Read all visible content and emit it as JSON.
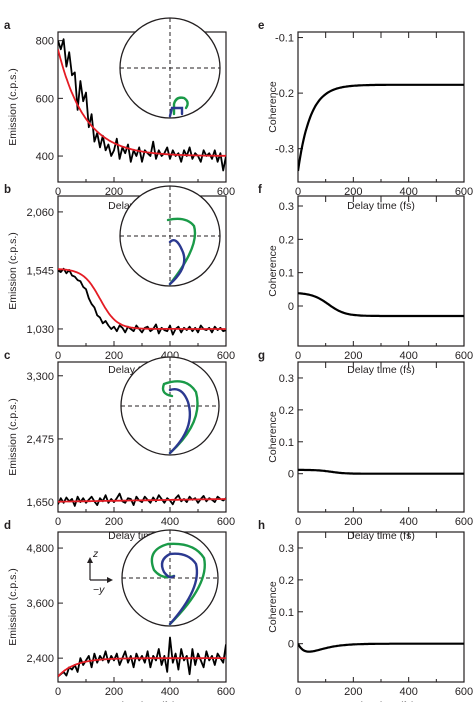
{
  "colors": {
    "data": "#000000",
    "fit": "#e41c24",
    "bloch_green": "#1a9a48",
    "bloch_blue": "#2b3990",
    "axis": "#231f20"
  },
  "chart_data": [
    {
      "panel": "a",
      "type": "line",
      "xlabel": "Delay time (fs)",
      "ylabel": "Emission (c.p.s.)",
      "xlim": [
        0,
        600
      ],
      "ylim": [
        310,
        830
      ],
      "xticks": [
        0,
        200,
        400,
        600
      ],
      "xtick_labels": [
        "0",
        "200",
        "400",
        "600"
      ],
      "yticks": [
        400,
        600,
        800
      ],
      "ytick_labels": [
        "400",
        "600",
        "800"
      ],
      "fit": {
        "type": "exp",
        "x0": 0,
        "x1": 600,
        "base": 400,
        "amp": 370,
        "tau": 95
      },
      "x": [
        0,
        10,
        20,
        30,
        40,
        50,
        60,
        70,
        80,
        90,
        100,
        110,
        120,
        130,
        140,
        150,
        160,
        170,
        180,
        190,
        200,
        210,
        220,
        230,
        240,
        250,
        260,
        270,
        280,
        290,
        300,
        310,
        320,
        330,
        340,
        350,
        360,
        370,
        380,
        390,
        400,
        410,
        420,
        430,
        440,
        450,
        460,
        470,
        480,
        490,
        500,
        510,
        520,
        530,
        540,
        550,
        560,
        570,
        580,
        590,
        600
      ],
      "y": [
        800,
        770,
        805,
        710,
        760,
        680,
        690,
        560,
        660,
        590,
        620,
        500,
        545,
        450,
        480,
        430,
        470,
        420,
        440,
        400,
        420,
        460,
        390,
        430,
        410,
        440,
        380,
        420,
        400,
        430,
        380,
        420,
        410,
        400,
        450,
        390,
        420,
        400,
        410,
        430,
        390,
        420,
        400,
        410,
        380,
        420,
        400,
        430,
        390,
        410,
        400,
        380,
        420,
        400,
        410,
        390,
        420,
        380,
        410,
        350,
        400
      ]
    },
    {
      "panel": "b",
      "type": "line",
      "xlabel": "Delay time (fs)",
      "ylabel": "Emission (c.p.s.)",
      "xlim": [
        0,
        600
      ],
      "ylim": [
        880,
        2200
      ],
      "xticks": [
        0,
        200,
        400,
        600
      ],
      "xtick_labels": [
        "0",
        "200",
        "400",
        "600"
      ],
      "yticks": [
        1030,
        1545,
        2060
      ],
      "ytick_labels": [
        "1,030",
        "1,545",
        "2,060"
      ],
      "fit": {
        "type": "sigmoid",
        "x0": 0,
        "x1": 600,
        "base": 1030,
        "amp": 530,
        "t0": 150,
        "w": 30
      },
      "x": [
        0,
        10,
        20,
        30,
        40,
        50,
        60,
        70,
        80,
        90,
        100,
        110,
        120,
        130,
        140,
        150,
        160,
        170,
        180,
        190,
        200,
        210,
        220,
        230,
        240,
        250,
        260,
        270,
        280,
        290,
        300,
        310,
        320,
        330,
        340,
        350,
        360,
        370,
        380,
        390,
        400,
        410,
        420,
        430,
        440,
        450,
        460,
        470,
        480,
        490,
        500,
        510,
        520,
        530,
        540,
        550,
        560,
        570,
        580,
        590,
        600
      ],
      "y": [
        1545,
        1530,
        1560,
        1520,
        1550,
        1500,
        1490,
        1460,
        1450,
        1400,
        1380,
        1300,
        1250,
        1220,
        1150,
        1130,
        1080,
        1100,
        1060,
        1030,
        1050,
        1010,
        1060,
        1040,
        1000,
        1050,
        1030,
        1010,
        1060,
        1030,
        1000,
        1040,
        1050,
        1010,
        1030,
        1070,
        990,
        1040,
        1020,
        1010,
        1060,
        980,
        1030,
        1050,
        1000,
        1040,
        1020,
        1050,
        1010,
        1040,
        1000,
        1060,
        1030,
        1020,
        1040,
        1000,
        1050,
        1020,
        1040,
        1010,
        1020
      ]
    },
    {
      "panel": "c",
      "type": "line",
      "xlabel": "Delay time (fs)",
      "ylabel": "Emission (c.p.s.)",
      "xlim": [
        0,
        600
      ],
      "ylim": [
        1520,
        3480
      ],
      "xticks": [
        0,
        200,
        400,
        600
      ],
      "xtick_labels": [
        "0",
        "200",
        "400",
        "600"
      ],
      "yticks": [
        1650,
        2475,
        3300
      ],
      "ytick_labels": [
        "1,650",
        "2,475",
        "3,300"
      ],
      "fit": {
        "type": "linear",
        "x0": 0,
        "x1": 600,
        "y0": 1655,
        "y1": 1690
      },
      "x": [
        0,
        10,
        20,
        30,
        40,
        50,
        60,
        70,
        80,
        90,
        100,
        110,
        120,
        130,
        140,
        150,
        160,
        170,
        180,
        190,
        200,
        210,
        220,
        230,
        240,
        250,
        260,
        270,
        280,
        290,
        300,
        310,
        320,
        330,
        340,
        350,
        360,
        370,
        380,
        390,
        400,
        410,
        420,
        430,
        440,
        450,
        460,
        470,
        480,
        490,
        500,
        510,
        520,
        530,
        540,
        550,
        560,
        570,
        580,
        590,
        600
      ],
      "y": [
        1620,
        1700,
        1640,
        1710,
        1660,
        1690,
        1600,
        1720,
        1650,
        1700,
        1640,
        1680,
        1720,
        1660,
        1610,
        1700,
        1660,
        1740,
        1640,
        1690,
        1650,
        1700,
        1760,
        1660,
        1640,
        1700,
        1690,
        1610,
        1720,
        1670,
        1650,
        1720,
        1680,
        1640,
        1710,
        1660,
        1740,
        1690,
        1640,
        1700,
        1670,
        1620,
        1700,
        1740,
        1660,
        1690,
        1650,
        1720,
        1680,
        1700,
        1640,
        1690,
        1730,
        1660,
        1700,
        1680,
        1650,
        1720,
        1690,
        1670,
        1700
      ]
    },
    {
      "panel": "d",
      "type": "line",
      "xlabel": "Delay time (fs)",
      "ylabel": "Emission (c.p.s.)",
      "xlim": [
        0,
        600
      ],
      "ylim": [
        1880,
        5150
      ],
      "xticks": [
        0,
        200,
        400,
        600
      ],
      "xtick_labels": [
        "0",
        "200",
        "400",
        "600"
      ],
      "yticks": [
        2400,
        3600,
        4800
      ],
      "ytick_labels": [
        "2,400",
        "3,600",
        "4,800"
      ],
      "fit": {
        "type": "exp_rise",
        "x0": 0,
        "x1": 600,
        "base": 2400,
        "amp": -400,
        "tau": 60
      },
      "x": [
        0,
        10,
        20,
        30,
        40,
        50,
        60,
        70,
        80,
        90,
        100,
        110,
        120,
        130,
        140,
        150,
        160,
        170,
        180,
        190,
        200,
        210,
        220,
        230,
        240,
        250,
        260,
        270,
        280,
        290,
        300,
        310,
        320,
        330,
        340,
        350,
        360,
        370,
        380,
        390,
        400,
        410,
        420,
        430,
        440,
        450,
        460,
        470,
        480,
        490,
        500,
        510,
        520,
        530,
        540,
        550,
        560,
        570,
        580,
        590,
        600
      ],
      "y": [
        2000,
        2050,
        2100,
        2020,
        2200,
        2150,
        2250,
        2100,
        2400,
        2250,
        2350,
        2450,
        2200,
        2500,
        2300,
        2450,
        2350,
        2550,
        2300,
        2450,
        2350,
        2500,
        2250,
        2400,
        2550,
        2300,
        2450,
        2200,
        2500,
        2350,
        2450,
        2300,
        2550,
        2200,
        2450,
        2350,
        2600,
        2250,
        2450,
        2100,
        2850,
        2300,
        2500,
        2150,
        2600,
        2350,
        2450,
        2050,
        2600,
        2250,
        2500,
        2350,
        2200,
        2550,
        2350,
        2450,
        2250,
        2500,
        2400,
        2300,
        2700
      ]
    },
    {
      "panel": "e",
      "type": "line",
      "xlabel": "Delay time (fs)",
      "ylabel": "Coherence",
      "xlim": [
        0,
        600
      ],
      "ylim": [
        -0.36,
        -0.09
      ],
      "xticks": [
        0,
        200,
        400,
        600
      ],
      "xtick_labels": [
        "0",
        "200",
        "400",
        "600"
      ],
      "yticks": [
        -0.3,
        -0.2,
        -0.1
      ],
      "ytick_labels": [
        "-0.3",
        "-0.2",
        "-0.1"
      ],
      "curve": {
        "type": "exp",
        "x0": 0,
        "x1": 600,
        "base": -0.185,
        "amp": -0.155,
        "tau": 45
      }
    },
    {
      "panel": "f",
      "type": "line",
      "xlabel": "Delay time (fs)",
      "ylabel": "Coherence",
      "xlim": [
        0,
        600
      ],
      "ylim": [
        -0.12,
        0.33
      ],
      "xticks": [
        0,
        200,
        400,
        600
      ],
      "xtick_labels": [
        "0",
        "200",
        "400",
        "600"
      ],
      "yticks": [
        0,
        0.1,
        0.2,
        0.3
      ],
      "ytick_labels": [
        "0",
        "0.1",
        "0.2",
        "0.3"
      ],
      "curve": {
        "type": "sigmoid",
        "x0": 0,
        "x1": 600,
        "base": -0.03,
        "amp": 0.07,
        "t0": 110,
        "w": 30
      }
    },
    {
      "panel": "g",
      "type": "line",
      "xlabel": "Delay time (fs)",
      "ylabel": "Coherence",
      "xlim": [
        0,
        600
      ],
      "ylim": [
        -0.12,
        0.35
      ],
      "xticks": [
        0,
        200,
        400,
        600
      ],
      "xtick_labels": [
        "0",
        "200",
        "400",
        "600"
      ],
      "yticks": [
        0,
        0.1,
        0.2,
        0.3
      ],
      "ytick_labels": [
        "0",
        "0.1",
        "0.2",
        "0.3"
      ],
      "curve": {
        "type": "sigmoid",
        "x0": 0,
        "x1": 600,
        "base": 0.0,
        "amp": 0.012,
        "t0": 120,
        "w": 25
      }
    },
    {
      "panel": "h",
      "type": "line",
      "xlabel": "Delay time (fs)",
      "ylabel": "Coherence",
      "xlim": [
        0,
        600
      ],
      "ylim": [
        -0.12,
        0.35
      ],
      "xticks": [
        0,
        200,
        400,
        600
      ],
      "xtick_labels": [
        "0",
        "200",
        "400",
        "600"
      ],
      "yticks": [
        0,
        0.1,
        0.2,
        0.3
      ],
      "ytick_labels": [
        "0",
        "0.1",
        "0.2",
        "0.3"
      ],
      "curve": {
        "type": "dip",
        "x0": 0,
        "x1": 600,
        "base": 0.0,
        "depth": -0.025,
        "tau": 40
      }
    }
  ],
  "insets": [
    {
      "panel": "a",
      "spiral_green": "small",
      "spiral_blue": "small"
    },
    {
      "panel": "b",
      "spiral_green": "large",
      "spiral_blue": "medium"
    },
    {
      "panel": "c",
      "spiral_green": "large",
      "spiral_blue": "large"
    },
    {
      "panel": "d",
      "spiral_green": "large",
      "spiral_blue": "large"
    }
  ],
  "axes_labels": {
    "z": "z",
    "minus_y": "−y"
  }
}
